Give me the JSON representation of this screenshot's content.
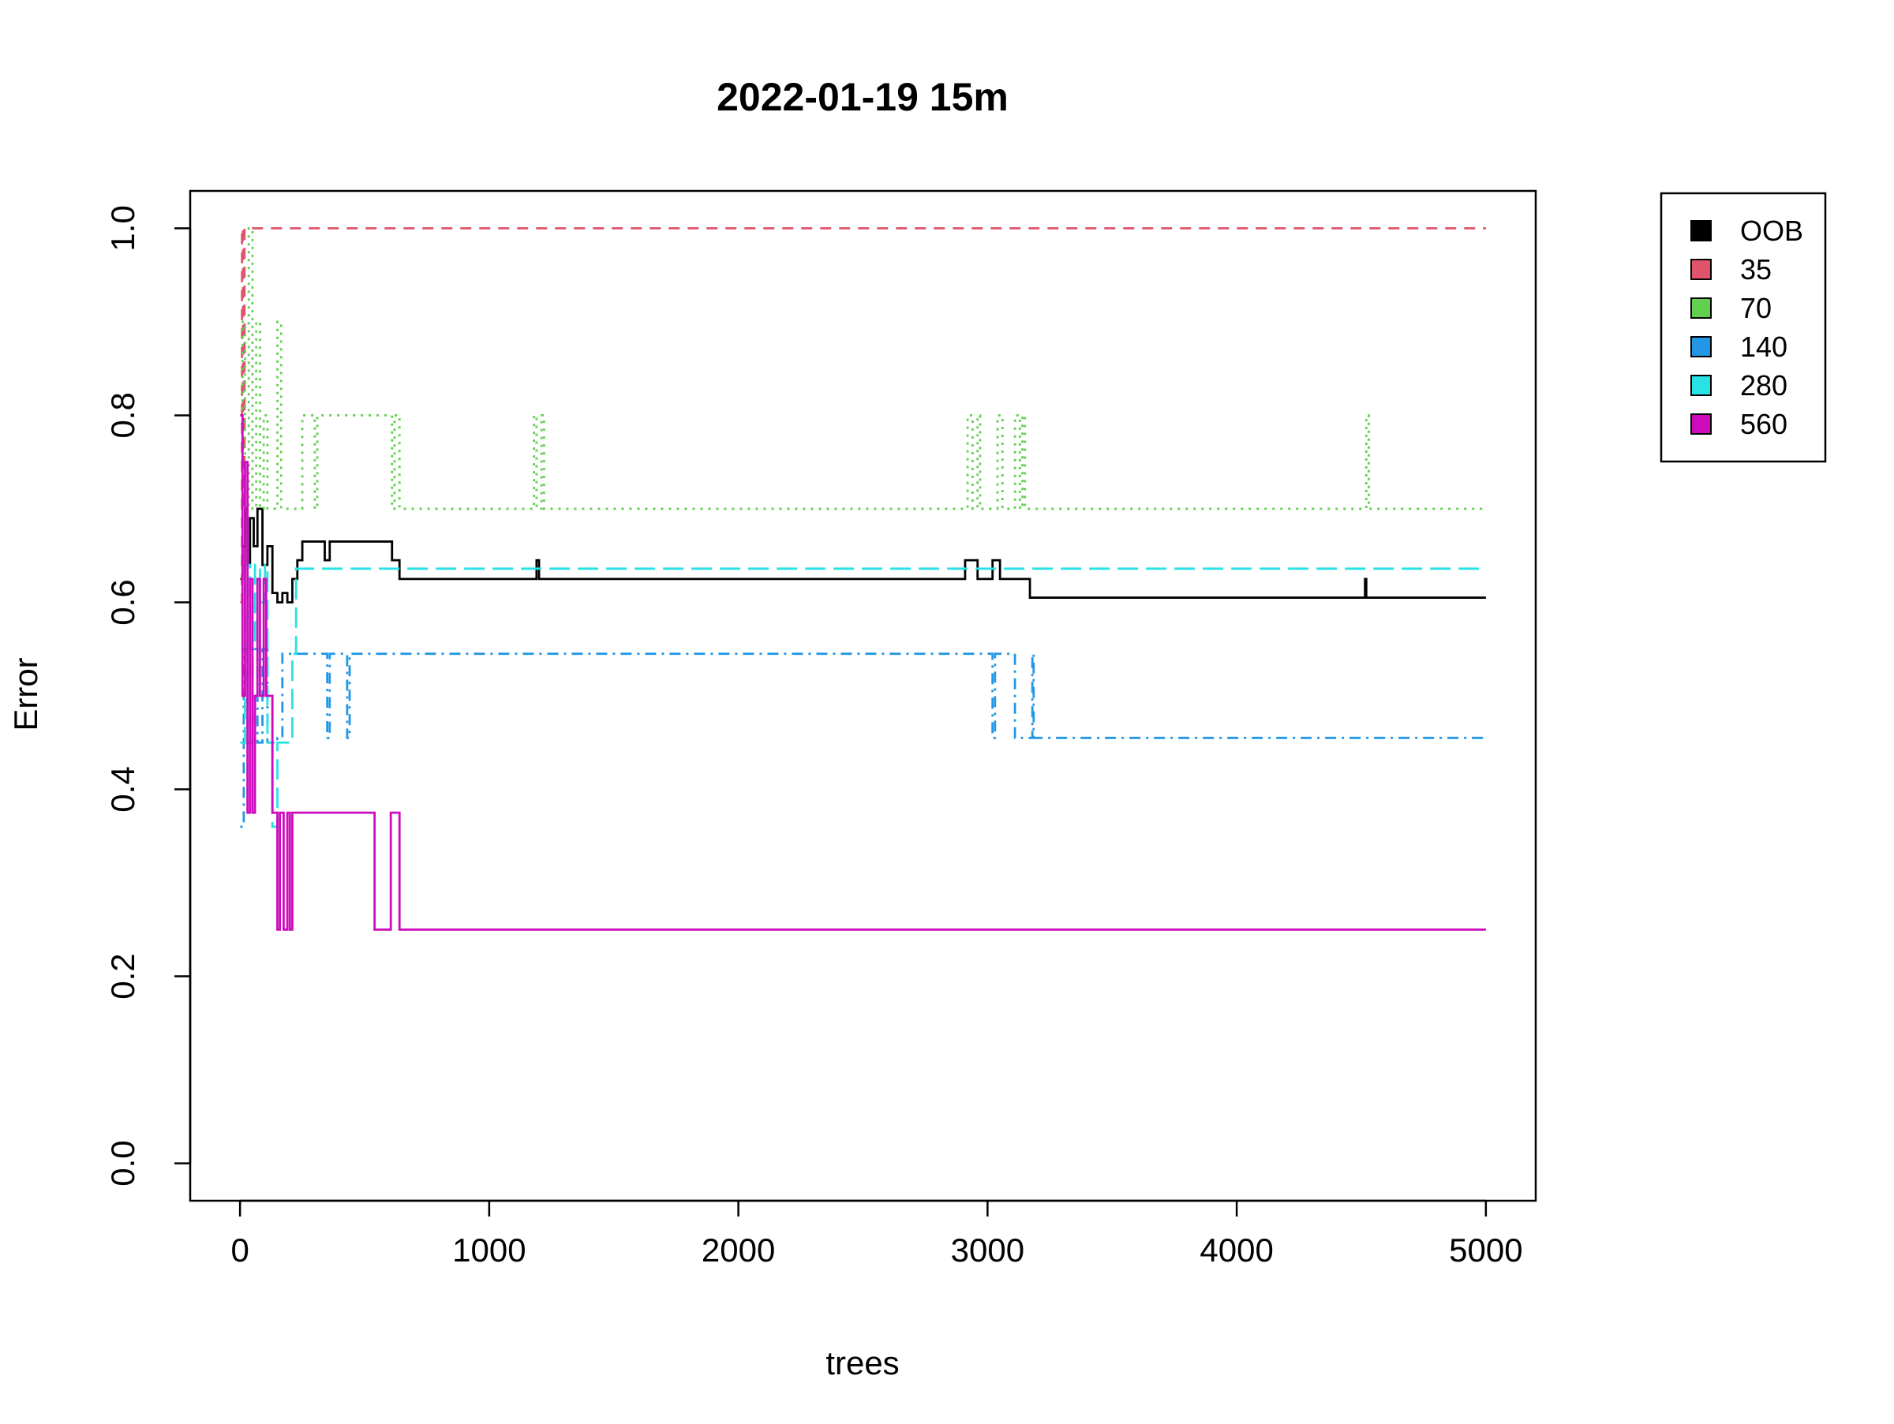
{
  "chart_data": {
    "type": "line",
    "title": "2022-01-19 15m",
    "xlabel": "trees",
    "ylabel": "Error",
    "xlim": [
      -200,
      5200
    ],
    "ylim": [
      -0.04,
      1.04
    ],
    "x_ticks": [
      "0",
      "1000",
      "2000",
      "3000",
      "4000",
      "5000"
    ],
    "y_ticks": [
      "0.0",
      "0.2",
      "0.4",
      "0.6",
      "0.8",
      "1.0"
    ],
    "grid": false,
    "legend_position": "outside-top-right",
    "series": [
      {
        "name": "OOB",
        "color": "#000000",
        "dash": "solid",
        "points": [
          [
            1,
            0.625
          ],
          [
            10,
            0.66
          ],
          [
            20,
            0.7
          ],
          [
            30,
            0.64
          ],
          [
            40,
            0.69
          ],
          [
            55,
            0.66
          ],
          [
            70,
            0.7
          ],
          [
            90,
            0.64
          ],
          [
            110,
            0.66
          ],
          [
            130,
            0.61
          ],
          [
            150,
            0.6
          ],
          [
            170,
            0.61
          ],
          [
            190,
            0.6
          ],
          [
            210,
            0.625
          ],
          [
            230,
            0.645
          ],
          [
            250,
            0.665
          ],
          [
            300,
            0.665
          ],
          [
            340,
            0.645
          ],
          [
            360,
            0.665
          ],
          [
            600,
            0.665
          ],
          [
            610,
            0.645
          ],
          [
            630,
            0.645
          ],
          [
            640,
            0.625
          ],
          [
            1180,
            0.625
          ],
          [
            1190,
            0.645
          ],
          [
            1200,
            0.625
          ],
          [
            2900,
            0.625
          ],
          [
            2910,
            0.645
          ],
          [
            2950,
            0.645
          ],
          [
            2960,
            0.625
          ],
          [
            3010,
            0.625
          ],
          [
            3020,
            0.645
          ],
          [
            3040,
            0.645
          ],
          [
            3050,
            0.625
          ],
          [
            3160,
            0.625
          ],
          [
            3170,
            0.605
          ],
          [
            4510,
            0.605
          ],
          [
            4515,
            0.625
          ],
          [
            4520,
            0.605
          ],
          [
            5000,
            0.605
          ]
        ]
      },
      {
        "name": "35",
        "color": "#DF536B",
        "dash": "dashed",
        "points": [
          [
            1,
            0.6
          ],
          [
            8,
            1.0
          ],
          [
            12,
            0.7
          ],
          [
            18,
            1.0
          ],
          [
            5000,
            1.0
          ]
        ]
      },
      {
        "name": "70",
        "color": "#61D04F",
        "dash": "dotted",
        "points": [
          [
            1,
            0.8
          ],
          [
            10,
            0.9
          ],
          [
            20,
            0.7
          ],
          [
            35,
            1.0
          ],
          [
            50,
            0.7
          ],
          [
            65,
            0.9
          ],
          [
            80,
            0.7
          ],
          [
            95,
            0.8
          ],
          [
            110,
            0.7
          ],
          [
            130,
            0.7
          ],
          [
            150,
            0.9
          ],
          [
            165,
            0.7
          ],
          [
            240,
            0.7
          ],
          [
            250,
            0.8
          ],
          [
            290,
            0.8
          ],
          [
            300,
            0.7
          ],
          [
            310,
            0.8
          ],
          [
            600,
            0.8
          ],
          [
            610,
            0.7
          ],
          [
            620,
            0.8
          ],
          [
            640,
            0.7
          ],
          [
            1170,
            0.7
          ],
          [
            1180,
            0.8
          ],
          [
            1190,
            0.7
          ],
          [
            1210,
            0.8
          ],
          [
            1220,
            0.7
          ],
          [
            2910,
            0.7
          ],
          [
            2920,
            0.8
          ],
          [
            2940,
            0.7
          ],
          [
            2960,
            0.8
          ],
          [
            2970,
            0.7
          ],
          [
            3030,
            0.7
          ],
          [
            3040,
            0.8
          ],
          [
            3060,
            0.7
          ],
          [
            3100,
            0.7
          ],
          [
            3110,
            0.8
          ],
          [
            3130,
            0.7
          ],
          [
            3140,
            0.8
          ],
          [
            3150,
            0.7
          ],
          [
            4510,
            0.7
          ],
          [
            4520,
            0.8
          ],
          [
            4530,
            0.7
          ],
          [
            5000,
            0.7
          ]
        ]
      },
      {
        "name": "140",
        "color": "#2297E6",
        "dash": "dashdot",
        "points": [
          [
            1,
            0.36
          ],
          [
            15,
            0.55
          ],
          [
            30,
            0.45
          ],
          [
            50,
            0.55
          ],
          [
            70,
            0.45
          ],
          [
            90,
            0.55
          ],
          [
            110,
            0.45
          ],
          [
            150,
            0.455
          ],
          [
            170,
            0.545
          ],
          [
            340,
            0.545
          ],
          [
            350,
            0.455
          ],
          [
            360,
            0.545
          ],
          [
            420,
            0.545
          ],
          [
            430,
            0.455
          ],
          [
            440,
            0.545
          ],
          [
            3010,
            0.545
          ],
          [
            3020,
            0.455
          ],
          [
            3030,
            0.545
          ],
          [
            3100,
            0.545
          ],
          [
            3110,
            0.455
          ],
          [
            3170,
            0.455
          ],
          [
            3180,
            0.545
          ],
          [
            3185,
            0.455
          ],
          [
            5000,
            0.455
          ]
        ]
      },
      {
        "name": "280",
        "color": "#28E2E5",
        "dash": "longdash",
        "points": [
          [
            1,
            0.45
          ],
          [
            20,
            0.64
          ],
          [
            40,
            0.55
          ],
          [
            60,
            0.64
          ],
          [
            80,
            0.6
          ],
          [
            100,
            0.64
          ],
          [
            110,
            0.45
          ],
          [
            130,
            0.36
          ],
          [
            150,
            0.45
          ],
          [
            210,
            0.545
          ],
          [
            220,
            0.545
          ],
          [
            225,
            0.636
          ],
          [
            5000,
            0.636
          ]
        ]
      },
      {
        "name": "560",
        "color": "#CD0BBC",
        "dash": "solid",
        "points": [
          [
            1,
            0.8
          ],
          [
            10,
            0.5
          ],
          [
            20,
            0.75
          ],
          [
            30,
            0.375
          ],
          [
            40,
            0.625
          ],
          [
            50,
            0.375
          ],
          [
            60,
            0.5
          ],
          [
            70,
            0.625
          ],
          [
            80,
            0.5
          ],
          [
            95,
            0.625
          ],
          [
            105,
            0.5
          ],
          [
            125,
            0.5
          ],
          [
            130,
            0.375
          ],
          [
            150,
            0.25
          ],
          [
            160,
            0.375
          ],
          [
            175,
            0.25
          ],
          [
            190,
            0.375
          ],
          [
            200,
            0.25
          ],
          [
            210,
            0.375
          ],
          [
            530,
            0.375
          ],
          [
            540,
            0.25
          ],
          [
            600,
            0.25
          ],
          [
            605,
            0.375
          ],
          [
            630,
            0.375
          ],
          [
            640,
            0.25
          ],
          [
            5000,
            0.25
          ]
        ]
      }
    ]
  }
}
